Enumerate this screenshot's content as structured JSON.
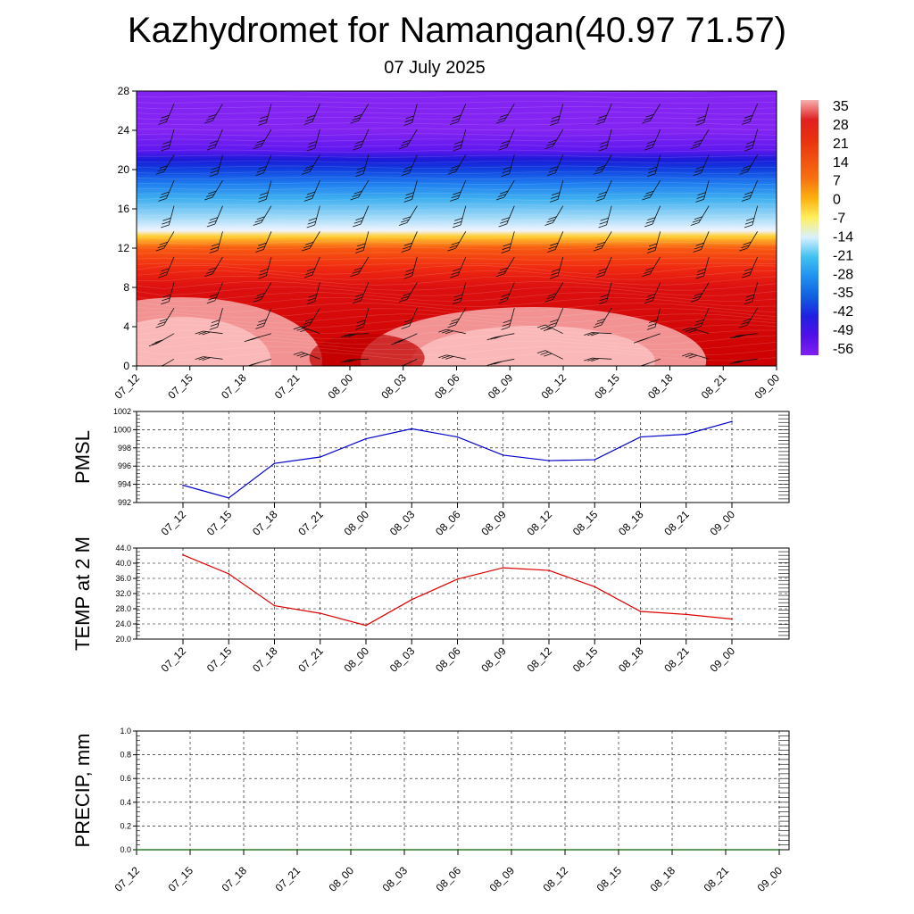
{
  "header": {
    "title": "Kazhydromet for Namangan(40.97 71.57)",
    "date": "07 July 2025"
  },
  "chart_data": [
    {
      "type": "heatmap",
      "panel": "cross-section",
      "x_labels": [
        "07_12",
        "07_15",
        "07_18",
        "07_21",
        "08_00",
        "08_03",
        "08_06",
        "08_09",
        "08_12",
        "08_15",
        "08_18",
        "08_21",
        "09_00"
      ],
      "ylim": [
        0,
        28
      ],
      "y_ticks": [
        0,
        4,
        8,
        12,
        16,
        20,
        24,
        28
      ],
      "colorbar": {
        "labels": [
          "35",
          "28",
          "21",
          "14",
          "7",
          "0",
          "-7",
          "-14",
          "-21",
          "-28",
          "-35",
          "-42",
          "-49",
          "-56"
        ],
        "colors": [
          "#f7b0b0",
          "#e02020",
          "#e83010",
          "#f05010",
          "#f87010",
          "#fcb010",
          "#fff060",
          "#d8f0ff",
          "#40c0f0",
          "#2090f0",
          "#1060e0",
          "#2020e0",
          "#5010e8",
          "#8020f0"
        ]
      },
      "wind_barbs": true
    },
    {
      "type": "line",
      "panel": "pmsl",
      "ylabel": "PMSL",
      "x": [
        "07_12",
        "07_15",
        "07_18",
        "07_21",
        "08_00",
        "08_03",
        "08_06",
        "08_09",
        "08_12",
        "08_15",
        "08_18",
        "08_21",
        "09_00"
      ],
      "series": [
        {
          "values": [
            993.9,
            992.5,
            996.3,
            997.0,
            999.0,
            1000.1,
            999.2,
            997.2,
            996.6,
            996.7,
            999.2,
            999.5,
            1000.9
          ],
          "color": "#0000cc"
        }
      ],
      "ylim": [
        992,
        1002
      ],
      "y_ticks": [
        "992",
        "994",
        "996",
        "998",
        "1000",
        "1002"
      ],
      "grid": true
    },
    {
      "type": "line",
      "panel": "temp",
      "ylabel": "TEMP at 2 M",
      "x": [
        "07_12",
        "07_15",
        "07_18",
        "07_21",
        "08_00",
        "08_03",
        "08_06",
        "08_09",
        "08_12",
        "08_15",
        "08_18",
        "08_21",
        "09_00"
      ],
      "series": [
        {
          "values": [
            42.2,
            37.2,
            28.8,
            26.8,
            23.6,
            30.4,
            35.8,
            38.8,
            38.1,
            33.8,
            27.3,
            26.5,
            25.3
          ],
          "color": "#dd0000"
        }
      ],
      "ylim": [
        20,
        44
      ],
      "y_ticks": [
        "20.0",
        "24.0",
        "28.0",
        "32.0",
        "36.0",
        "40.0",
        "44.0"
      ],
      "grid": true
    },
    {
      "type": "line",
      "panel": "precip",
      "ylabel": "PRECIP, mm",
      "x": [
        "07_12",
        "07_15",
        "07_18",
        "07_21",
        "08_00",
        "08_03",
        "08_06",
        "08_09",
        "08_12",
        "08_15",
        "08_18",
        "08_21",
        "09_00"
      ],
      "series": [
        {
          "values": [
            0,
            0,
            0,
            0,
            0,
            0,
            0,
            0,
            0,
            0,
            0,
            0,
            0
          ],
          "color": "#006600"
        }
      ],
      "ylim": [
        0,
        1
      ],
      "y_ticks": [
        "0.0",
        "0.2",
        "0.4",
        "0.6",
        "0.8",
        "1.0"
      ],
      "grid": true
    }
  ]
}
